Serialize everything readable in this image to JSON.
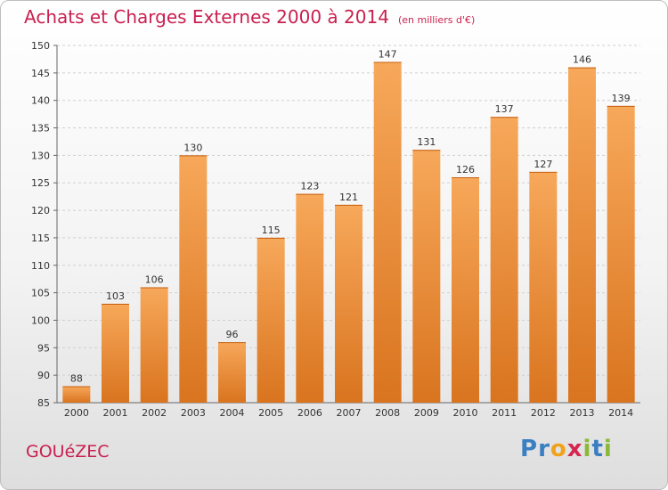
{
  "header": {
    "title": "Achats et Charges Externes 2000 à 2014",
    "unit": "(en milliers d'€)"
  },
  "footer": {
    "commune": "GOUéZEC",
    "logo_text": "Proxiti",
    "logo_letters": [
      {
        "ch": "P",
        "color": "#3a7fc1"
      },
      {
        "ch": "r",
        "color": "#3a7fc1"
      },
      {
        "ch": "o",
        "color": "#f0a21b"
      },
      {
        "ch": "x",
        "color": "#d4264f"
      },
      {
        "ch": "i",
        "color": "#8cb83a"
      },
      {
        "ch": "t",
        "color": "#3a7fc1"
      },
      {
        "ch": "i",
        "color": "#8cb83a"
      }
    ]
  },
  "colors": {
    "accent": "#c9204f",
    "bar_light": "#f7a85a",
    "bar_dark": "#d9741f"
  },
  "chart_data": {
    "type": "bar",
    "title": "Achats et Charges Externes 2000 à 2014",
    "subtitle": "(en milliers d'€)",
    "xlabel": "",
    "ylabel": "",
    "categories": [
      "2000",
      "2001",
      "2002",
      "2003",
      "2004",
      "2005",
      "2006",
      "2007",
      "2008",
      "2009",
      "2010",
      "2011",
      "2012",
      "2013",
      "2014"
    ],
    "values": [
      88,
      103,
      106,
      130,
      96,
      115,
      123,
      121,
      147,
      131,
      126,
      137,
      127,
      146,
      139
    ],
    "ylim": [
      85,
      150
    ],
    "yticks": [
      85,
      90,
      95,
      100,
      105,
      110,
      115,
      120,
      125,
      130,
      135,
      140,
      145,
      150
    ],
    "grid": true,
    "legend": "none"
  }
}
